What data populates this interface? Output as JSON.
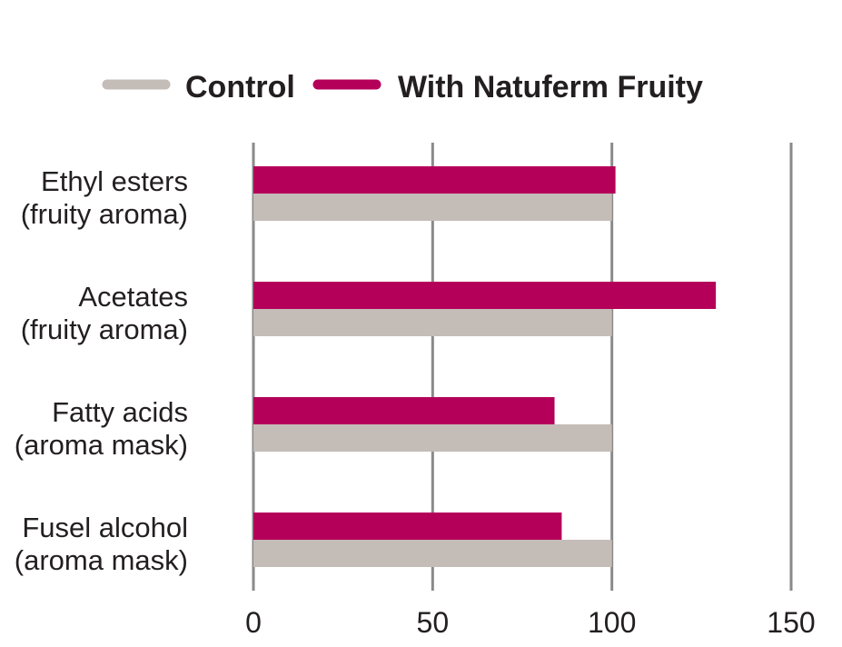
{
  "chart_data": {
    "type": "bar",
    "orientation": "horizontal",
    "title": "",
    "xlabel": "",
    "ylabel": "",
    "categories": [
      [
        "Ethyl esters",
        "(fruity aroma)"
      ],
      [
        "Acetates",
        "(fruity aroma)"
      ],
      [
        "Fatty acids",
        "(aroma mask)"
      ],
      [
        "Fusel alcohol",
        "(aroma mask)"
      ]
    ],
    "series": [
      {
        "name": "Control",
        "color": "#c4bcb7",
        "values": [
          100,
          100,
          100,
          100
        ]
      },
      {
        "name": "With Natuferm Fruity",
        "color": "#b5005a",
        "values": [
          101,
          129,
          84,
          86
        ]
      }
    ],
    "xlim": [
      0,
      150
    ],
    "xticks": [
      0,
      50,
      100,
      150
    ],
    "xtick_labels": [
      "0",
      "50",
      "100",
      "150"
    ],
    "grid": true,
    "legend_position": "top"
  }
}
